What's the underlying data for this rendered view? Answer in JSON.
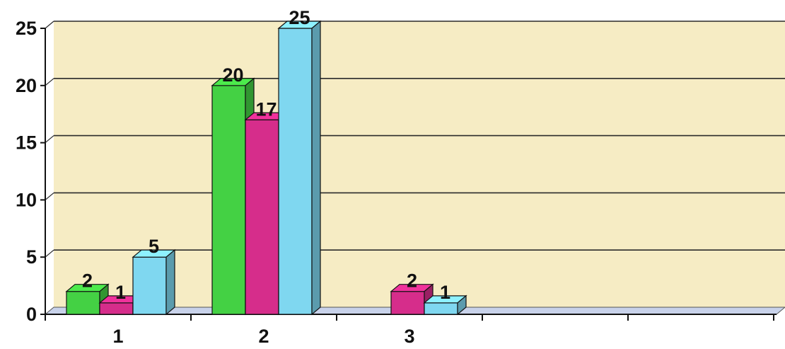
{
  "chart_data": {
    "type": "bar",
    "style": "3d-clustered-column",
    "categories": [
      "1",
      "2",
      "3"
    ],
    "series": [
      {
        "values": [
          2,
          20,
          null
        ],
        "color": "#44d144"
      },
      {
        "values": [
          1,
          17,
          2
        ],
        "color": "#d62d8b"
      },
      {
        "values": [
          5,
          25,
          1
        ],
        "color": "#7fd7f0"
      }
    ],
    "value_labels": [
      [
        "2",
        "20",
        ""
      ],
      [
        "1",
        "17",
        "2"
      ],
      [
        "5",
        "25",
        "1"
      ]
    ],
    "yticks": [
      0,
      5,
      10,
      15,
      20,
      25
    ],
    "ylim": [
      0,
      25
    ],
    "grid": true,
    "legend": "none",
    "colors": {
      "plot_wall": "#f6ecc4",
      "plot_floor": "#c8d2ea",
      "gridline": "#2a2a2a",
      "axis": "#111111"
    }
  }
}
